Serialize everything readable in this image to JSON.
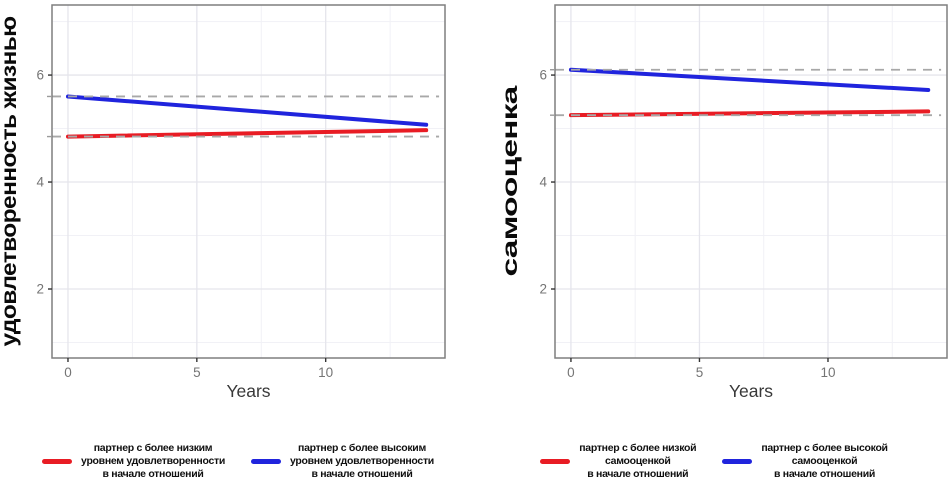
{
  "figure": {
    "background": "#ffffff",
    "accent_red": "#e81c24",
    "accent_blue": "#2024dd",
    "ref_line_color": "#a8a8a8"
  },
  "chart_data": [
    {
      "type": "line",
      "title": "",
      "xlabel": "Years",
      "ylabel": "удовлетворенность жизнью",
      "xlim": [
        -0.62,
        14.63
      ],
      "ylim": [
        0.71,
        7.31
      ],
      "x_ticks": [
        0,
        5,
        10
      ],
      "y_ticks": [
        2,
        4,
        6
      ],
      "x_minor_gridlines": [
        2.5,
        7.5,
        12.5
      ],
      "y_minor_gridlines": [
        1,
        3,
        5,
        7
      ],
      "grid": true,
      "legend_position": "bottom",
      "series": [
        {
          "name": "партнер с более низким уровнем удовлетворенности в начале отношений",
          "color": "#e81c24",
          "points": [
            [
              0,
              4.85
            ],
            [
              13.9,
              4.97
            ]
          ]
        },
        {
          "name": "партнер с более высоким уровнем удовлетворенности в начале отношений",
          "color": "#2024dd",
          "points": [
            [
              0,
              5.6
            ],
            [
              13.9,
              5.07
            ]
          ]
        }
      ],
      "ref_lines": [
        {
          "y": 5.6,
          "style": "dashed",
          "color": "#a8a8a8",
          "x_end": 14.4
        },
        {
          "y": 4.85,
          "style": "dashed",
          "color": "#a8a8a8",
          "x_end": 14.4
        }
      ],
      "legend": [
        {
          "color": "#e81c24",
          "lines": [
            "партнер с более низким",
            "уровнем удовлетворенности",
            "в начале отношений"
          ]
        },
        {
          "color": "#2024dd",
          "lines": [
            "партнер с более высоким",
            "уровнем удовлетворенности",
            "в начале отношений"
          ]
        }
      ]
    },
    {
      "type": "line",
      "title": "",
      "xlabel": "Years",
      "ylabel": "самооценка",
      "xlim": [
        -0.62,
        14.63
      ],
      "ylim": [
        0.71,
        7.31
      ],
      "x_ticks": [
        0,
        5,
        10
      ],
      "y_ticks": [
        2,
        4,
        6
      ],
      "x_minor_gridlines": [
        2.5,
        7.5,
        12.5
      ],
      "y_minor_gridlines": [
        1,
        3,
        5,
        7
      ],
      "grid": true,
      "legend_position": "bottom",
      "series": [
        {
          "name": "партнер с более низкой самооценкой в начале отношений",
          "color": "#e81c24",
          "points": [
            [
              0,
              5.25
            ],
            [
              13.9,
              5.32
            ]
          ]
        },
        {
          "name": "партнер с более высокой самооценкой в начале отношений",
          "color": "#2024dd",
          "points": [
            [
              0,
              6.1
            ],
            [
              13.9,
              5.72
            ]
          ]
        }
      ],
      "ref_lines": [
        {
          "y": 6.1,
          "style": "dashed",
          "color": "#a8a8a8",
          "x_end": 14.4
        },
        {
          "y": 5.25,
          "style": "dashed",
          "color": "#a8a8a8",
          "x_end": 14.4
        }
      ],
      "legend": [
        {
          "color": "#e81c24",
          "lines": [
            "партнер с более низкой",
            "самооценкой",
            "в начале отношений"
          ]
        },
        {
          "color": "#2024dd",
          "lines": [
            "партнер с более высокой",
            "самооценкой",
            "в начале отношений"
          ]
        }
      ]
    }
  ]
}
